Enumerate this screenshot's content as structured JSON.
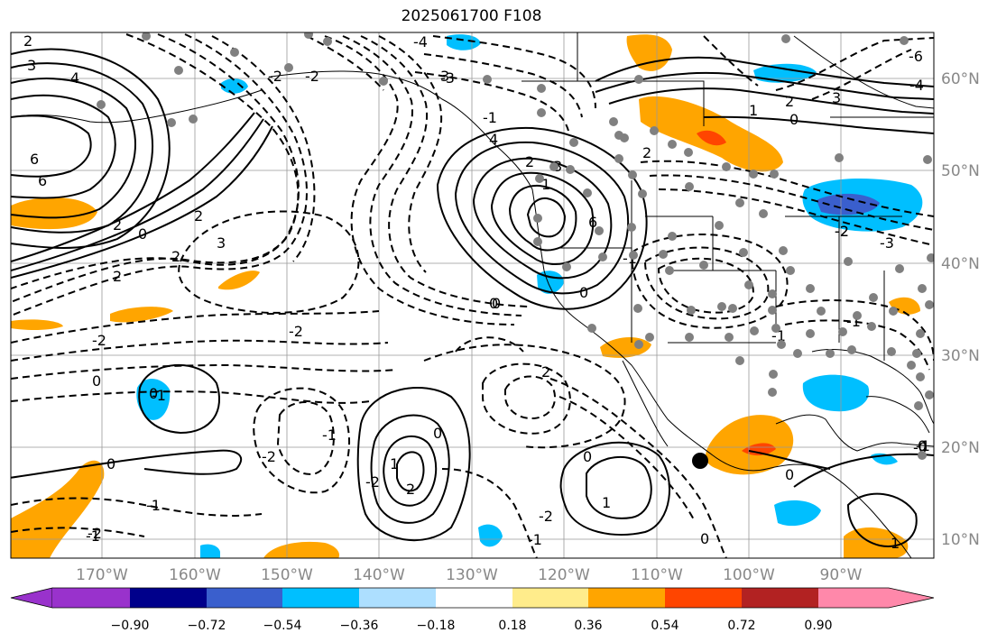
{
  "title": "2025061700 F108",
  "lon_labels": [
    "170°W",
    "160°W",
    "150°W",
    "140°W",
    "130°W",
    "120°W",
    "110°W",
    "100°W",
    "90°W"
  ],
  "lat_labels": [
    "60°N",
    "50°N",
    "40°N",
    "30°N",
    "20°N",
    "10°N"
  ],
  "colorbar": {
    "ticks": [
      "−0.90",
      "−0.72",
      "−0.54",
      "−0.36",
      "−0.18",
      "0.18",
      "0.36",
      "0.54",
      "0.72",
      "0.90"
    ],
    "colors": [
      "#9932CC",
      "#00008B",
      "#3A5FCD",
      "#00BFFF",
      "#ADDFFF",
      "#FFFFFF",
      "#FFEC8B",
      "#FFA500",
      "#FF4500",
      "#B22222",
      "#FF88AA"
    ]
  },
  "contour_labels": [
    "2",
    "3",
    "4",
    "6",
    "6",
    "2",
    "0",
    "2",
    "3",
    "2",
    "2",
    "0",
    "-2",
    "-2",
    "0",
    "2",
    "3",
    "4",
    "3",
    "0",
    "1",
    "2",
    "3",
    "6",
    "-4",
    "-3",
    "-1",
    "-1",
    "-2",
    "2",
    "1",
    "2",
    "0",
    "0",
    "-1",
    "-2",
    "-1",
    "-2",
    "-1",
    "-1",
    "-2",
    "1",
    "0",
    "0",
    "1",
    "2",
    "0",
    "-2",
    "0",
    "1",
    "-1",
    "-1",
    "-0",
    "0",
    "-1",
    "-1",
    "0",
    "0",
    "-3",
    "-2",
    "-2",
    "-2",
    "-6",
    "-4"
  ]
}
